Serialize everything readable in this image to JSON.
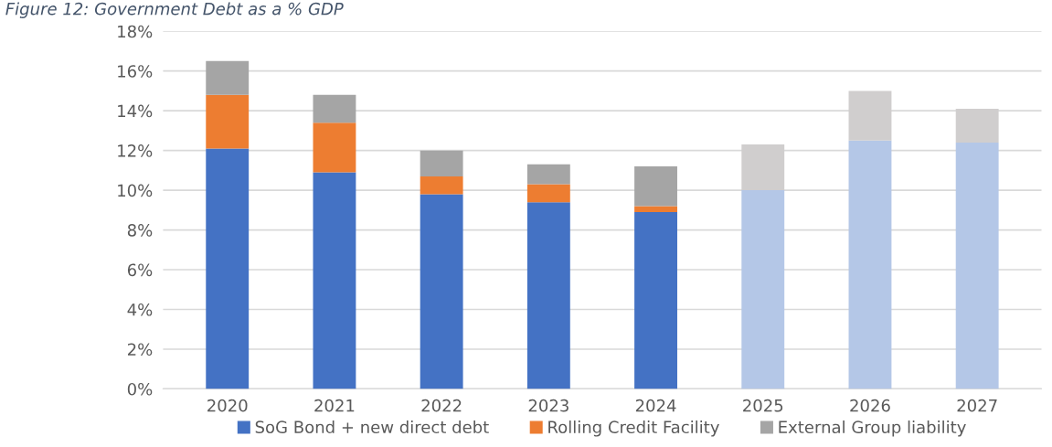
{
  "chart_data": {
    "type": "bar",
    "title": "Figure 12: Government Debt as a % GDP",
    "stacked": true,
    "categories": [
      "2020",
      "2021",
      "2022",
      "2023",
      "2024",
      "2025",
      "2026",
      "2027"
    ],
    "series": [
      {
        "name": "SoG Bond + new direct debt",
        "color": "#4472c4",
        "colors": [
          "#4472c4",
          "#4472c4",
          "#4472c4",
          "#4472c4",
          "#4472c4",
          "#b4c7e7",
          "#b4c7e7",
          "#b4c7e7"
        ],
        "values": [
          12.1,
          10.9,
          9.8,
          9.4,
          8.9,
          10.0,
          12.5,
          12.4
        ]
      },
      {
        "name": "Rolling Credit Facility",
        "color": "#ed7d31",
        "values": [
          2.7,
          2.5,
          0.9,
          0.9,
          0.3,
          null,
          null,
          null
        ]
      },
      {
        "name": "External Group liability",
        "color": "#a5a5a5",
        "colors": [
          "#a5a5a5",
          "#a5a5a5",
          "#a5a5a5",
          "#a5a5a5",
          "#a5a5a5",
          "#d0cece",
          "#d0cece",
          "#d0cece"
        ],
        "values": [
          1.7,
          1.4,
          1.3,
          1.0,
          2.0,
          2.3,
          2.5,
          1.7
        ]
      }
    ],
    "ylim": [
      0,
      18
    ],
    "yticks": [
      {
        "value": 0,
        "label": "0%"
      },
      {
        "value": 2,
        "label": "2%"
      },
      {
        "value": 4,
        "label": "4%"
      },
      {
        "value": 6,
        "label": "6%"
      },
      {
        "value": 8,
        "label": "8%"
      },
      {
        "value": 10,
        "label": "10%"
      },
      {
        "value": 12,
        "label": "12%"
      },
      {
        "value": 14,
        "label": "14%"
      },
      {
        "value": 16,
        "label": "16%"
      },
      {
        "value": 18,
        "label": "18%"
      }
    ],
    "grid": "y",
    "legend": "bottom"
  }
}
